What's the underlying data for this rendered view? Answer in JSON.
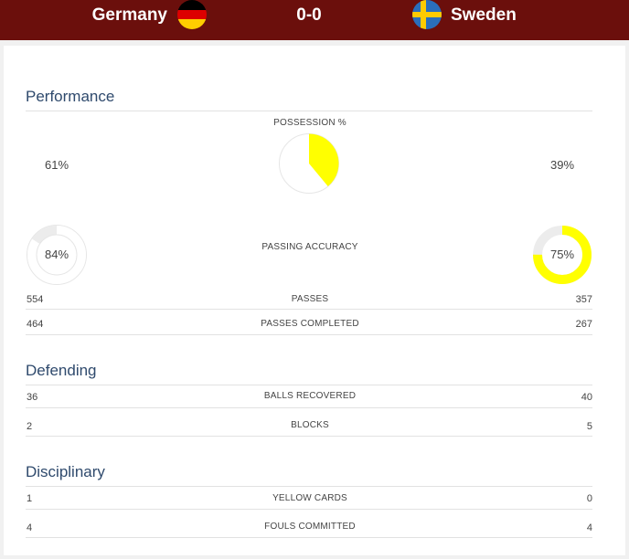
{
  "header": {
    "home_team": "Germany",
    "score": "0-0",
    "away_team": "Sweden"
  },
  "colors": {
    "header_bg": "#6b0f0c",
    "accent_yellow": "#ffff00",
    "track_grey": "#ececec",
    "section_title": "#2f4a6d"
  },
  "icons": {
    "home_flag": "germany-flag-icon",
    "away_flag": "sweden-flag-icon"
  },
  "performance": {
    "title": "Performance",
    "possession": {
      "label": "POSSESSION %",
      "home_text": "61%",
      "away_text": "39%",
      "home": 61,
      "away": 39
    },
    "passing_accuracy": {
      "label": "PASSING ACCURACY",
      "home_text": "84%",
      "away_text": "75%",
      "home": 84,
      "away": 75
    },
    "passes": {
      "label": "PASSES",
      "home": "554",
      "away": "357"
    },
    "passes_completed": {
      "label": "PASSES COMPLETED",
      "home": "464",
      "away": "267"
    }
  },
  "defending": {
    "title": "Defending",
    "balls_recovered": {
      "label": "BALLS RECOVERED",
      "home": "36",
      "away": "40"
    },
    "blocks": {
      "label": "BLOCKS",
      "home": "2",
      "away": "5"
    }
  },
  "disciplinary": {
    "title": "Disciplinary",
    "yellow_cards": {
      "label": "YELLOW CARDS",
      "home": "1",
      "away": "0"
    },
    "fouls_committed": {
      "label": "FOULS COMMITTED",
      "home": "4",
      "away": "4"
    }
  }
}
